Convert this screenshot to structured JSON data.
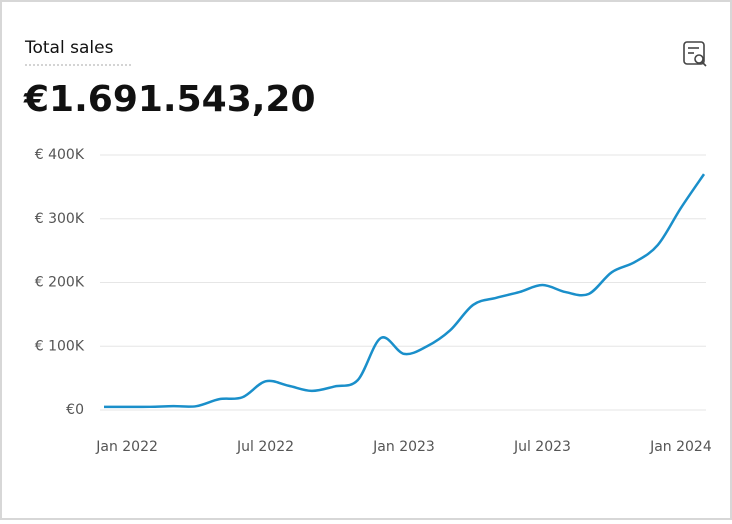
{
  "chart_data": {
    "type": "line",
    "title": "Total sales",
    "subtitle": "€1.691.543,20",
    "categories": [
      null,
      "Jan 2022",
      null,
      null,
      null,
      null,
      null,
      "Jul 2022",
      null,
      null,
      null,
      null,
      null,
      "Jan 2023",
      null,
      null,
      null,
      null,
      null,
      "Jul 2023",
      null,
      null,
      null,
      null,
      null,
      "Jan 2024",
      null
    ],
    "series": [
      {
        "name": "Total sales",
        "color": "#1a8fca",
        "values": [
          5000,
          5000,
          5000,
          6000,
          6000,
          17000,
          20000,
          45000,
          38000,
          30000,
          37000,
          47000,
          113000,
          88000,
          100000,
          125000,
          165000,
          176000,
          185000,
          196000,
          185000,
          182000,
          216000,
          232000,
          259000,
          317000,
          370000
        ]
      }
    ],
    "ylim": [
      0,
      400000
    ],
    "yticks": [
      {
        "value": 0,
        "label": "€0"
      },
      {
        "value": 100000,
        "label": "€ 100K"
      },
      {
        "value": 200000,
        "label": "€ 200K"
      },
      {
        "value": 300000,
        "label": "€ 300K"
      },
      {
        "value": 400000,
        "label": "€ 400K"
      }
    ],
    "grid": true
  }
}
